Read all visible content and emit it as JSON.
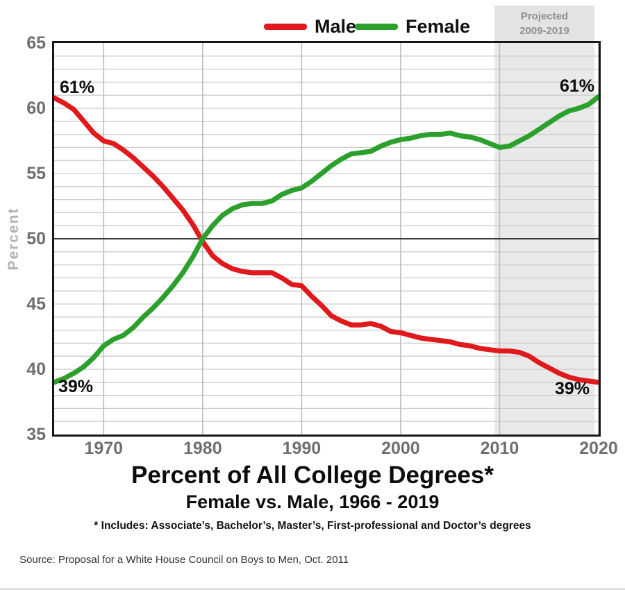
{
  "legend": {
    "male_label": "Male",
    "female_label": "Female"
  },
  "projected": {
    "line1": "Projected",
    "line2": "2009-2019"
  },
  "axes": {
    "y_label": "Percent",
    "y_ticks": [
      65,
      60,
      55,
      50,
      45,
      40,
      35
    ],
    "x_ticks": [
      1970,
      1980,
      1990,
      2000,
      2010,
      2020
    ]
  },
  "annotations": {
    "male_start": "61%",
    "male_end": "39%",
    "female_start": "39%",
    "female_end": "61%"
  },
  "titles": {
    "title": "Percent of All College Degrees*",
    "subtitle": "Female vs. Male, 1966 - 2019",
    "footnote": "* Includes: Associate’s, Bachelor’s, Master’s, First-professional and Doctor’s degrees"
  },
  "source": "Source:  Proposal for a White House Council on Boys to Men, Oct. 2011",
  "colors": {
    "male": "#e0191c",
    "female": "#2ca02c",
    "grid_minor": "#cccccc",
    "grid_vertical": "#bdbdbd",
    "grid_fifty": "#3c3c3c",
    "projection_band": "#e9e9e9",
    "projection_box": "#e3e3e3",
    "plot_border": "#161616",
    "tick_text": "#6f6f6f"
  },
  "chart_data": {
    "type": "line",
    "title": "Percent of All College Degrees*",
    "subtitle": "Female vs. Male, 1966 - 2019",
    "xlabel": "",
    "ylabel": "Percent",
    "x_range": [
      1965,
      2020
    ],
    "y_range": [
      35,
      65
    ],
    "grid": "on, 1-point minor horizontal lines; darker reference line at 50; vertical lines each decade",
    "legend_position": "top-center",
    "projection_band_years": [
      2009.5,
      2019.6
    ],
    "years": [
      1965,
      1966,
      1967,
      1968,
      1969,
      1970,
      1971,
      1972,
      1973,
      1974,
      1975,
      1976,
      1977,
      1978,
      1979,
      1980,
      1981,
      1982,
      1983,
      1984,
      1985,
      1986,
      1987,
      1988,
      1989,
      1990,
      1991,
      1992,
      1993,
      1994,
      1995,
      1996,
      1997,
      1998,
      1999,
      2000,
      2001,
      2002,
      2003,
      2004,
      2005,
      2006,
      2007,
      2008,
      2009,
      2010,
      2011,
      2012,
      2013,
      2014,
      2015,
      2016,
      2017,
      2018,
      2019,
      2020
    ],
    "series": [
      {
        "name": "Male",
        "color": "#e0191c",
        "start_label": "61%",
        "end_label": "39%",
        "values": [
          60.8,
          60.4,
          59.9,
          59.0,
          58.1,
          57.5,
          57.3,
          56.8,
          56.2,
          55.5,
          54.8,
          54.0,
          53.1,
          52.2,
          51.1,
          49.8,
          48.7,
          48.1,
          47.7,
          47.5,
          47.4,
          47.4,
          47.4,
          47.0,
          46.5,
          46.4,
          45.6,
          44.9,
          44.1,
          43.7,
          43.4,
          43.4,
          43.5,
          43.3,
          42.9,
          42.8,
          42.6,
          42.4,
          42.3,
          42.2,
          42.1,
          41.9,
          41.8,
          41.6,
          41.5,
          41.4,
          41.4,
          41.3,
          41.0,
          40.5,
          40.1,
          39.7,
          39.4,
          39.2,
          39.1,
          39.0
        ]
      },
      {
        "name": "Female",
        "color": "#2ca02c",
        "start_label": "39%",
        "end_label": "61%",
        "values": [
          39.0,
          39.3,
          39.7,
          40.2,
          40.9,
          41.8,
          42.3,
          42.6,
          43.2,
          44.0,
          44.7,
          45.5,
          46.4,
          47.4,
          48.6,
          50.0,
          51.0,
          51.8,
          52.3,
          52.6,
          52.7,
          52.7,
          52.9,
          53.4,
          53.7,
          53.9,
          54.4,
          55.0,
          55.6,
          56.1,
          56.5,
          56.6,
          56.7,
          57.1,
          57.4,
          57.6,
          57.7,
          57.9,
          58.0,
          58.0,
          58.1,
          57.9,
          57.8,
          57.6,
          57.3,
          57.0,
          57.1,
          57.5,
          57.9,
          58.4,
          58.9,
          59.4,
          59.8,
          60.0,
          60.3,
          60.9
        ]
      }
    ]
  }
}
